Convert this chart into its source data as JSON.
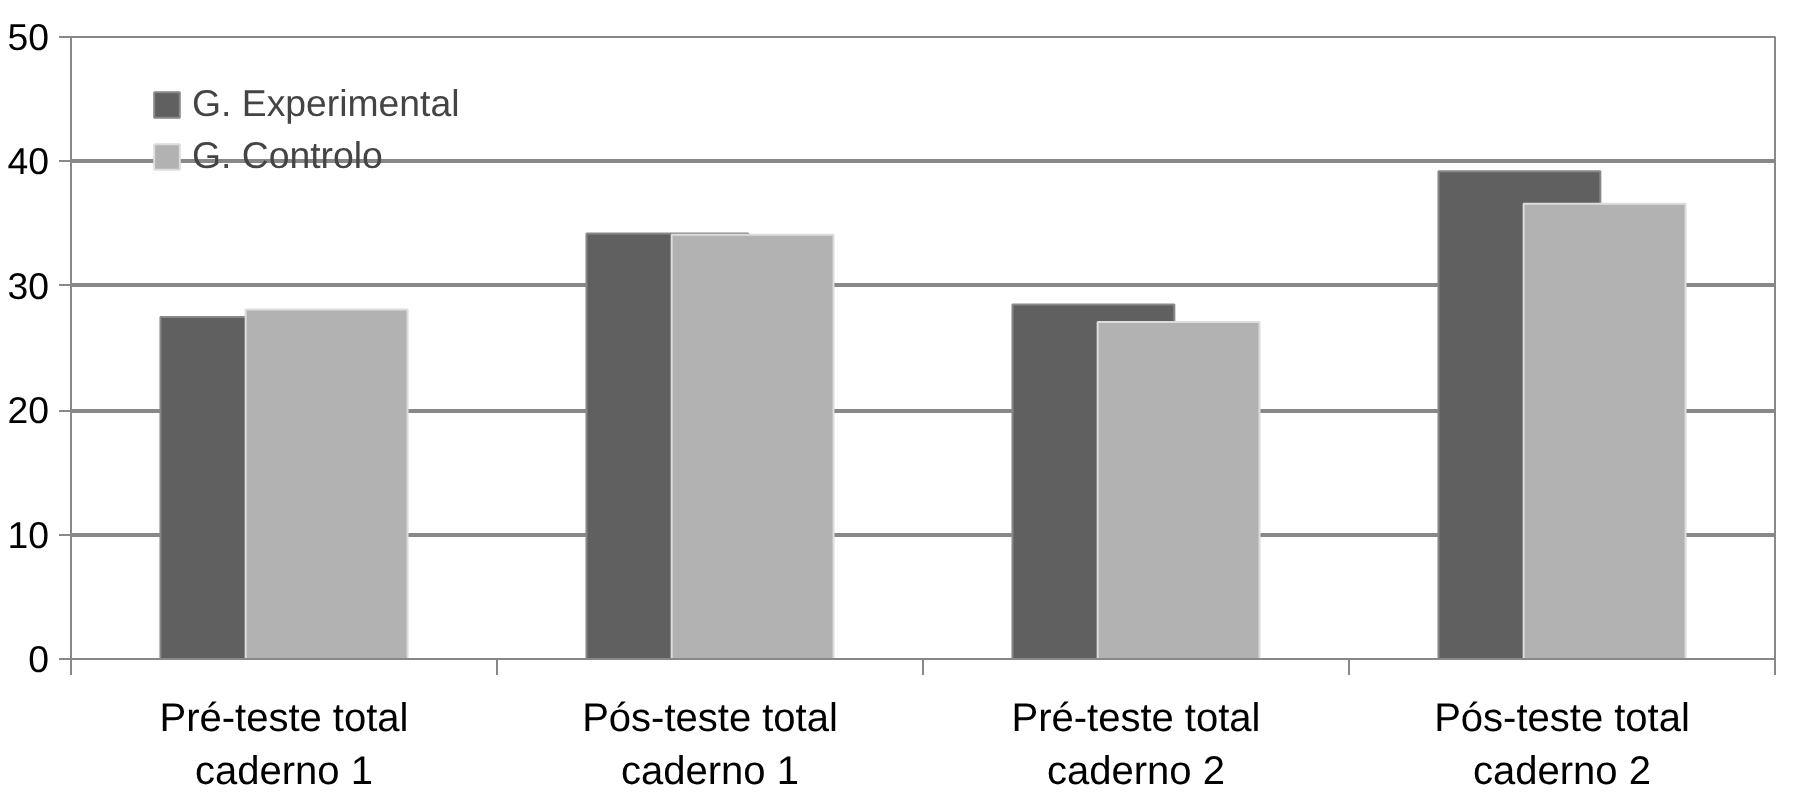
{
  "chart_data": {
    "type": "bar",
    "categories": [
      "Pré-teste total\ncaderno 1",
      "Pós-teste total\ncaderno 1",
      "Pré-teste total\ncaderno 2",
      "Pós-teste total\ncaderno 2"
    ],
    "series": [
      {
        "name": "G. Experimental",
        "color": "#606060",
        "values": [
          27.5,
          34.2,
          28.5,
          39.2
        ]
      },
      {
        "name": "G. Controlo",
        "color": "#b2b2b2",
        "values": [
          28.1,
          34.1,
          27.1,
          36.6
        ]
      }
    ],
    "ylim": [
      0,
      50
    ],
    "yticks": [
      0,
      10,
      20,
      30,
      40,
      50
    ],
    "grid": "y",
    "legend": "top left"
  }
}
